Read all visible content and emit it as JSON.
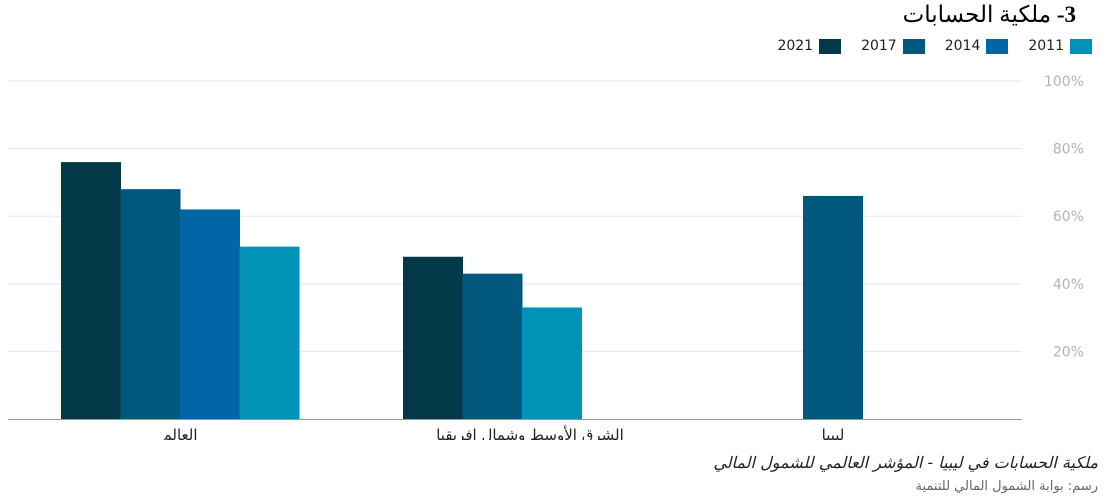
{
  "heading": {
    "number": "3-",
    "text": "ملكية الحسابات"
  },
  "colors": {
    "2021": "#033949",
    "2017": "#01587d",
    "2014": "#0166a6",
    "2011": "#0292b7",
    "grid": "#e6e6e6",
    "axis": "#999999",
    "tick": "#b3b3b3"
  },
  "chart_data": {
    "type": "bar",
    "categories": [
      "العالم",
      "الشرق الأوسط وشمال افريقيا",
      "ليبيا"
    ],
    "series": [
      {
        "name": "2021",
        "values": [
          76,
          48,
          null
        ]
      },
      {
        "name": "2017",
        "values": [
          68,
          43,
          66
        ]
      },
      {
        "name": "2014",
        "values": [
          62,
          null,
          null
        ]
      },
      {
        "name": "2011",
        "values": [
          51,
          33,
          null
        ]
      }
    ],
    "legend_order": [
      "2021",
      "2017",
      "2014",
      "2011"
    ],
    "y_ticks": [
      "100%",
      "80%",
      "60%",
      "40%",
      "20%"
    ],
    "y_tick_values": [
      100,
      80,
      60,
      40,
      20
    ],
    "ylim": [
      0,
      100
    ],
    "grid": true,
    "legend_position": "top-right",
    "y_axis_side": "right"
  },
  "caption": "ملكية الحسابات في ليبيا - المؤشر العالمي للشمول المالي",
  "source": "رسم: بوابة الشمول المالي للتنمية"
}
